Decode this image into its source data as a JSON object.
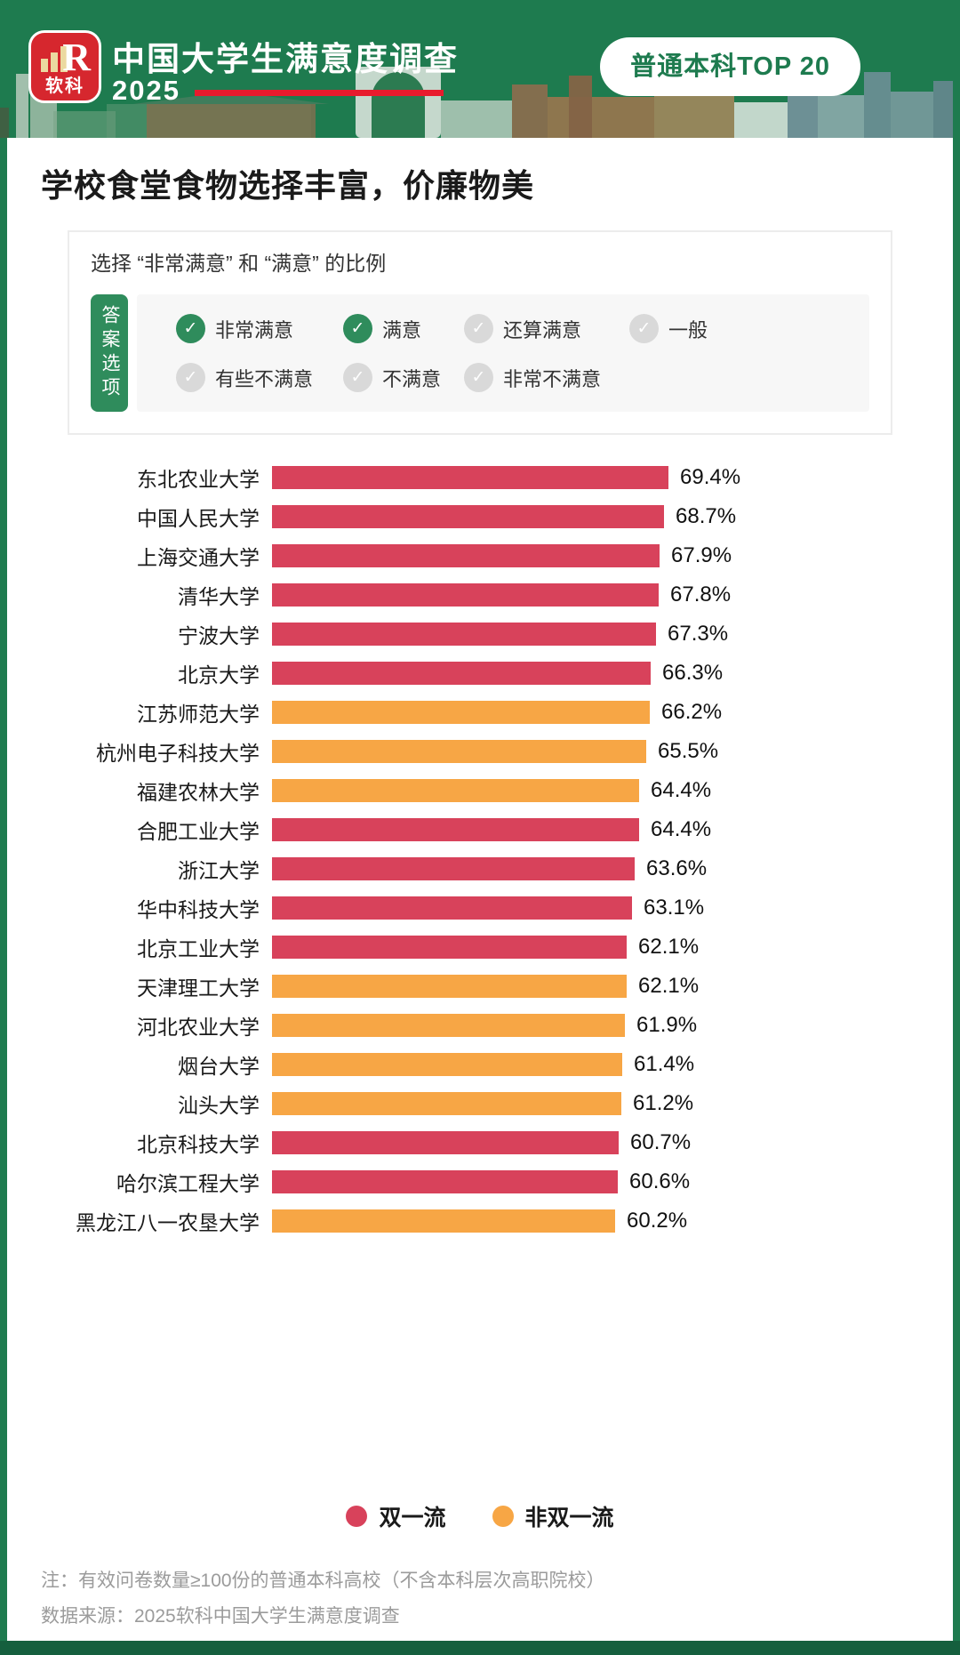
{
  "header": {
    "logo_brand": "软科",
    "logo_monogram": "R",
    "title": "中国大学生满意度调查",
    "year": "2025",
    "badge": "普通本科TOP 20"
  },
  "main": {
    "title": "学校食堂食物选择丰富，价廉物美"
  },
  "survey_box": {
    "heading": "选择 “非常满意” 和 “满意” 的比例",
    "tab_label": "答案选项",
    "option_rows": [
      [
        {
          "label": "非常满意",
          "checked": true
        },
        {
          "label": "满意",
          "checked": true
        },
        {
          "label": "还算满意",
          "checked": false
        },
        {
          "label": "一般",
          "checked": false
        }
      ],
      [
        {
          "label": "有些不满意",
          "checked": false
        },
        {
          "label": "不满意",
          "checked": false
        },
        {
          "label": "非常不满意",
          "checked": false
        }
      ]
    ]
  },
  "chart_data": {
    "type": "bar",
    "orientation": "horizontal",
    "title": "学校食堂食物选择丰富，价廉物美",
    "subtitle": "选择 “非常满意” 和 “满意” 的比例",
    "categories": [
      "东北农业大学",
      "中国人民大学",
      "上海交通大学",
      "清华大学",
      "宁波大学",
      "北京大学",
      "江苏师范大学",
      "杭州电子科技大学",
      "福建农林大学",
      "合肥工业大学",
      "浙江大学",
      "华中科技大学",
      "北京工业大学",
      "天津理工大学",
      "河北农业大学",
      "烟台大学",
      "汕头大学",
      "北京科技大学",
      "哈尔滨工程大学",
      "黑龙江八一农垦大学"
    ],
    "values": [
      69.4,
      68.7,
      67.9,
      67.8,
      67.3,
      66.3,
      66.2,
      65.5,
      64.4,
      64.4,
      63.6,
      63.1,
      62.1,
      62.1,
      61.9,
      61.4,
      61.2,
      60.7,
      60.6,
      60.2
    ],
    "bar_classes": [
      "double",
      "double",
      "double",
      "double",
      "double",
      "double",
      "non",
      "non",
      "non",
      "double",
      "double",
      "double",
      "double",
      "non",
      "non",
      "non",
      "non",
      "double",
      "double",
      "non"
    ],
    "class_colors": {
      "double": "#D8425B",
      "non": "#F7A645"
    },
    "class_labels": {
      "double": "双一流",
      "non": "非双一流"
    },
    "xlim": [
      0,
      70
    ],
    "value_suffix": "%",
    "grid": false,
    "legend_position": "bottom",
    "value_labels_shown": true
  },
  "legend": [
    {
      "label": "双一流",
      "class": "double"
    },
    {
      "label": "非双一流",
      "class": "non"
    }
  ],
  "footnotes": [
    "注：有效问卷数量≥100份的普通本科高校（不含本科层次高职院校）",
    "数据来源：2025软科中国大学生满意度调查"
  ],
  "icons": {
    "checked_icon": "check-circle-green",
    "unchecked_icon": "check-circle-gray",
    "check_glyph": "✓"
  },
  "colors": {
    "header_green": "#1E7B4F",
    "bottom_strip_green": "#155F3E",
    "logo_red": "#D6272E",
    "accent_red_line": "#E81B2D",
    "badge_text_green": "#1E7B4F",
    "bar_double_first_class": "#D8425B",
    "bar_non_double_first_class": "#F7A645",
    "check_on": "#2F8C5C",
    "check_off": "#D9D9D9",
    "footnote_gray": "#9B9B9B"
  }
}
